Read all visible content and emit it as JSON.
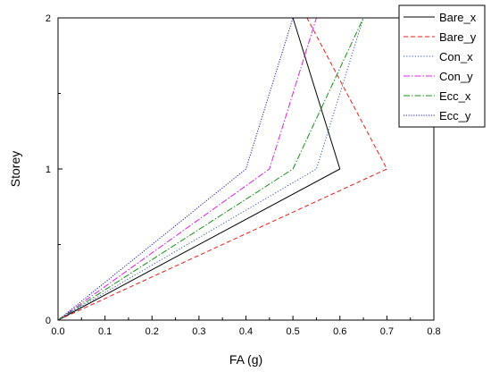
{
  "chart_data": {
    "type": "line",
    "title": "",
    "xlabel": "FA (g)",
    "ylabel": "Storey",
    "xlim": [
      0.0,
      0.8
    ],
    "ylim": [
      0,
      2
    ],
    "x_ticks": [
      "0.0",
      "0.1",
      "0.2",
      "0.3",
      "0.4",
      "0.5",
      "0.6",
      "0.7",
      "0.8"
    ],
    "y_ticks": [
      "0",
      "1",
      "2"
    ],
    "grid": false,
    "legend_position": "top-right",
    "series": [
      {
        "name": "Bare_x",
        "color": "#000000",
        "dash": "solid",
        "x": [
          0.0,
          0.6,
          0.5
        ],
        "y": [
          0,
          1,
          2
        ]
      },
      {
        "name": "Bare_y",
        "color": "#e8201a",
        "dash": "dash",
        "x": [
          0.0,
          0.7,
          0.53
        ],
        "y": [
          0,
          1,
          2
        ]
      },
      {
        "name": "Con_x",
        "color": "#3355cc",
        "dash": "dot",
        "x": [
          0.0,
          0.55,
          0.65
        ],
        "y": [
          0,
          1,
          2
        ]
      },
      {
        "name": "Con_y",
        "color": "#e020e0",
        "dash": "dashdot",
        "x": [
          0.0,
          0.45,
          0.55
        ],
        "y": [
          0,
          1,
          2
        ]
      },
      {
        "name": "Ecc_x",
        "color": "#1a8f1a",
        "dash": "dashdot",
        "x": [
          0.0,
          0.5,
          0.65
        ],
        "y": [
          0,
          1,
          2
        ]
      },
      {
        "name": "Ecc_y",
        "color": "#1a1aa8",
        "dash": "shortdot",
        "x": [
          0.0,
          0.4,
          0.5
        ],
        "y": [
          0,
          1,
          2
        ]
      }
    ]
  }
}
